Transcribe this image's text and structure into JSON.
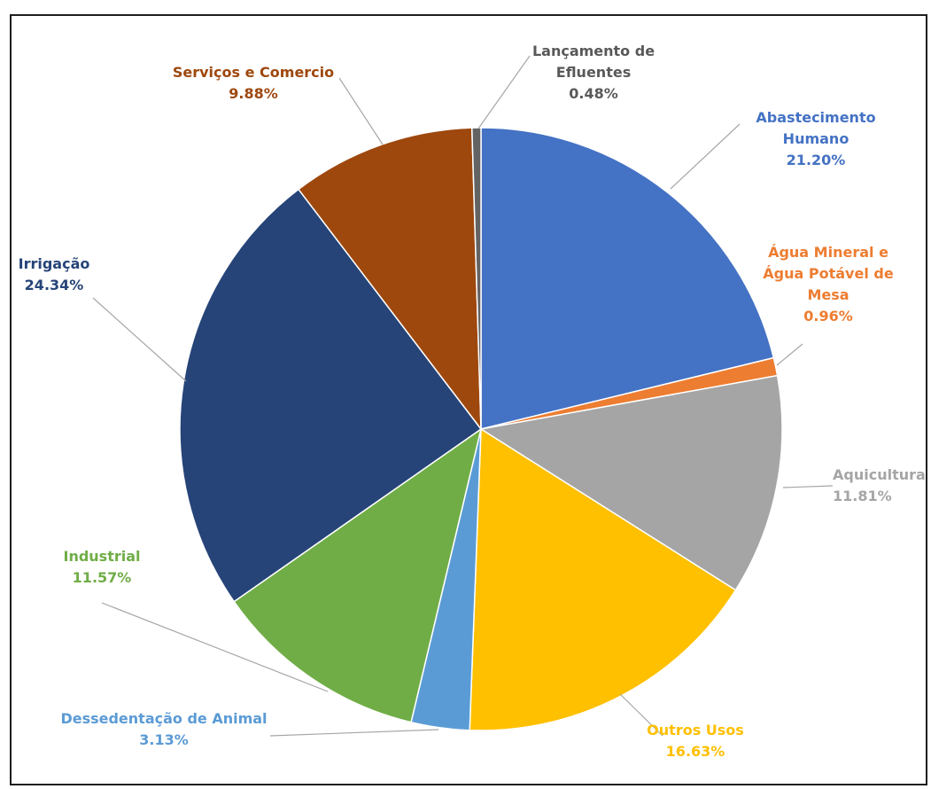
{
  "chart_data": {
    "type": "pie",
    "title": "",
    "legend": "none",
    "slices": [
      {
        "label": [
          "Abastecimento",
          "Humano"
        ],
        "value_label": "21.20%",
        "value": 21.2,
        "color": "#4472C4",
        "label_color": "#4472C4"
      },
      {
        "label": [
          "Água Mineral e",
          "Água Potável de",
          "Mesa"
        ],
        "value_label": "0.96%",
        "value": 0.96,
        "color": "#ED7D31",
        "label_color": "#ED7D31"
      },
      {
        "label": [
          "Aquicultura"
        ],
        "value_label": "11.81%",
        "value": 11.81,
        "color": "#A5A5A5",
        "label_color": "#A5A5A5"
      },
      {
        "label": [
          "Outros Usos"
        ],
        "value_label": "16.63%",
        "value": 16.63,
        "color": "#FFC000",
        "label_color": "#FFC000"
      },
      {
        "label": [
          "Dessedentação de Animal"
        ],
        "value_label": "3.13%",
        "value": 3.13,
        "color": "#5B9BD5",
        "label_color": "#5B9BD5"
      },
      {
        "label": [
          "Industrial"
        ],
        "value_label": "11.57%",
        "value": 11.57,
        "color": "#70AD47",
        "label_color": "#70AD47"
      },
      {
        "label": [
          "Irrigação"
        ],
        "value_label": "24.34%",
        "value": 24.34,
        "color": "#264478",
        "label_color": "#264478"
      },
      {
        "label": [
          "Serviços e Comercio"
        ],
        "value_label": "9.88%",
        "value": 9.88,
        "color": "#9E480E",
        "label_color": "#9E480E"
      },
      {
        "label": [
          "Lançamento de",
          "Efluentes"
        ],
        "value_label": "0.48%",
        "value": 0.48,
        "color": "#636363",
        "label_color": "#595959"
      }
    ]
  }
}
